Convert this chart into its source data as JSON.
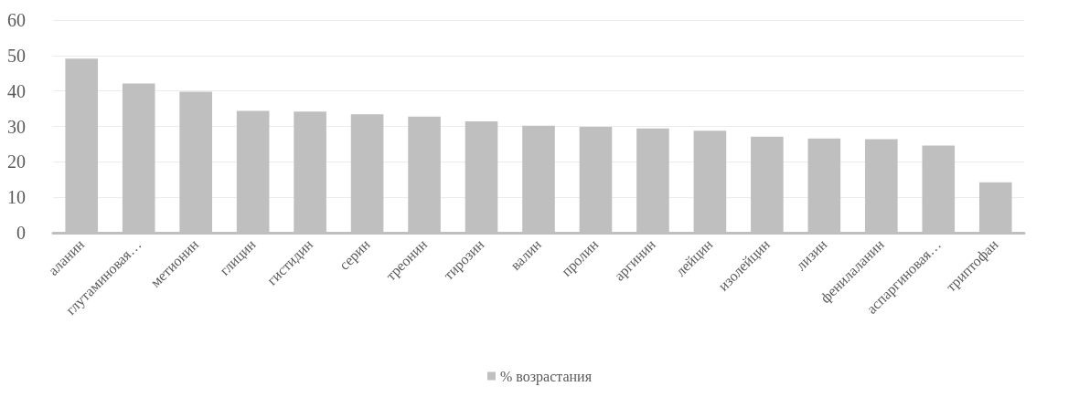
{
  "chart_data": {
    "type": "bar",
    "categories": [
      "аланин",
      "глутаминовая…",
      "метионин",
      "глицин",
      "гистидин",
      "серин",
      "треонин",
      "тирозин",
      "валин",
      "пролин",
      "аргинин",
      "лейцин",
      "изолейцин",
      "лизин",
      "фенилаланин",
      "аспаргиновая…",
      "триптофан"
    ],
    "series": [
      {
        "name": "% возрастания",
        "color": "#bfbfbf",
        "values": [
          49.1,
          42.1,
          39.8,
          34.4,
          34.2,
          33.4,
          32.8,
          31.4,
          30.2,
          29.9,
          29.4,
          28.8,
          27.1,
          26.6,
          26.4,
          24.6,
          14.2
        ]
      }
    ],
    "ylim": [
      0,
      60
    ],
    "yticks": [
      0,
      10,
      20,
      30,
      40,
      50,
      60
    ],
    "grid": "y",
    "legend": "bottom"
  }
}
